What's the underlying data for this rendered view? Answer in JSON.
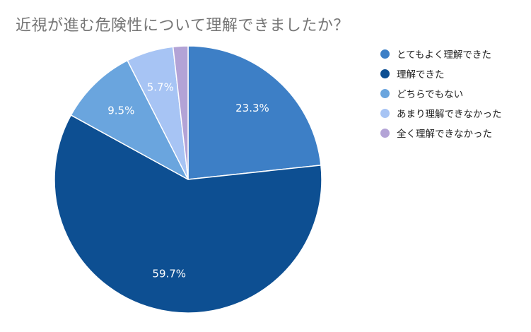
{
  "chart_data": {
    "type": "pie",
    "title": "近視が進む危険性について理解できましたか？",
    "categories": [
      "とてもよく理解できた",
      "理解できた",
      "どちらでもない",
      "あまり理解できなかった",
      "全く理解できなかった"
    ],
    "values": [
      23.3,
      59.7,
      9.5,
      5.7,
      1.8
    ],
    "data_labels": [
      "23.3%",
      "59.7%",
      "9.5%",
      "5.7%",
      ""
    ],
    "colors": [
      "#3d7fc6",
      "#0d4f92",
      "#6aa5de",
      "#a7c4f4",
      "#b3a3d6"
    ],
    "legend_position": "right",
    "start_angle": "top",
    "direction": "clockwise"
  }
}
